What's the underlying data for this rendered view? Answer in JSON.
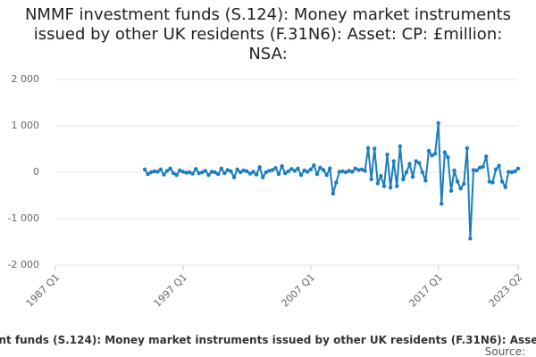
{
  "chart_data": {
    "type": "line",
    "title": "NMMF investment funds (S.124): Money market instruments issued by other UK residents (F.31N6): Asset: CP: £million: NSA:",
    "source_label": "Source:",
    "color": "#1a7dbf",
    "grid": true,
    "x": [
      "1994 Q1",
      "1994 Q2",
      "1994 Q3",
      "1994 Q4",
      "1995 Q1",
      "1995 Q2",
      "1995 Q3",
      "1995 Q4",
      "1996 Q1",
      "1996 Q2",
      "1996 Q3",
      "1996 Q4",
      "1997 Q1",
      "1997 Q2",
      "1997 Q3",
      "1997 Q4",
      "1998 Q1",
      "1998 Q2",
      "1998 Q3",
      "1998 Q4",
      "1999 Q1",
      "1999 Q2",
      "1999 Q3",
      "1999 Q4",
      "2000 Q1",
      "2000 Q2",
      "2000 Q3",
      "2000 Q4",
      "2001 Q1",
      "2001 Q2",
      "2001 Q3",
      "2001 Q4",
      "2002 Q1",
      "2002 Q2",
      "2002 Q3",
      "2002 Q4",
      "2003 Q1",
      "2003 Q2",
      "2003 Q3",
      "2003 Q4",
      "2004 Q1",
      "2004 Q2",
      "2004 Q3",
      "2004 Q4",
      "2005 Q1",
      "2005 Q2",
      "2005 Q3",
      "2005 Q4",
      "2006 Q1",
      "2006 Q2",
      "2006 Q3",
      "2006 Q4",
      "2007 Q1",
      "2007 Q2",
      "2007 Q3",
      "2007 Q4",
      "2008 Q1",
      "2008 Q2",
      "2008 Q3",
      "2008 Q4",
      "2009 Q1",
      "2009 Q2",
      "2009 Q3",
      "2009 Q4",
      "2010 Q1",
      "2010 Q2",
      "2010 Q3",
      "2010 Q4",
      "2011 Q1",
      "2011 Q2",
      "2011 Q3",
      "2011 Q4",
      "2012 Q1",
      "2012 Q2",
      "2012 Q3",
      "2012 Q4",
      "2013 Q1",
      "2013 Q2",
      "2013 Q3",
      "2013 Q4",
      "2014 Q1",
      "2014 Q2",
      "2014 Q3",
      "2014 Q4",
      "2015 Q1",
      "2015 Q2",
      "2015 Q3",
      "2015 Q4",
      "2016 Q1",
      "2016 Q2",
      "2016 Q3",
      "2016 Q4",
      "2017 Q1",
      "2017 Q2",
      "2017 Q3",
      "2017 Q4",
      "2018 Q1",
      "2018 Q2",
      "2018 Q3",
      "2018 Q4",
      "2019 Q1",
      "2019 Q2",
      "2019 Q3",
      "2019 Q4",
      "2020 Q1",
      "2020 Q2",
      "2020 Q3",
      "2020 Q4",
      "2021 Q1",
      "2021 Q2",
      "2021 Q3",
      "2021 Q4",
      "2022 Q1",
      "2022 Q2",
      "2022 Q3",
      "2022 Q4",
      "2023 Q1",
      "2023 Q2"
    ],
    "values": [
      60,
      -40,
      0,
      20,
      10,
      60,
      -50,
      30,
      80,
      -20,
      -60,
      40,
      10,
      -10,
      0,
      -30,
      70,
      -20,
      0,
      30,
      -60,
      10,
      0,
      -40,
      80,
      -20,
      50,
      20,
      -110,
      60,
      0,
      40,
      20,
      -30,
      10,
      -50,
      110,
      -110,
      0,
      30,
      50,
      90,
      -40,
      130,
      -20,
      20,
      70,
      30,
      80,
      -60,
      40,
      10,
      60,
      150,
      -40,
      100,
      50,
      -60,
      80,
      -460,
      -220,
      10,
      20,
      0,
      30,
      10,
      80,
      50,
      60,
      30,
      520,
      -150,
      510,
      -240,
      -80,
      -300,
      380,
      -330,
      240,
      -300,
      560,
      -150,
      0,
      180,
      -100,
      240,
      200,
      0,
      -180,
      460,
      360,
      400,
      1060,
      -680,
      430,
      320,
      -400,
      40,
      -200,
      -350,
      -250,
      520,
      -1430,
      50,
      40,
      100,
      120,
      340,
      -200,
      -220,
      60,
      140,
      -200,
      -320,
      10,
      0,
      20,
      80
    ],
    "xlim": [
      "1987 Q1",
      "2023 Q2"
    ],
    "xticks": [
      "1987 Q1",
      "1997 Q1",
      "2007 Q1",
      "2017 Q1",
      "2023 Q2"
    ],
    "ylim": [
      -2000,
      2000
    ],
    "yticks": [
      {
        "value": 2000,
        "label": "2 000"
      },
      {
        "value": 1000,
        "label": "1 000"
      },
      0,
      {
        "value": -1000,
        "label": "-1 000"
      },
      {
        "value": -2000,
        "label": "-2 000"
      }
    ]
  }
}
